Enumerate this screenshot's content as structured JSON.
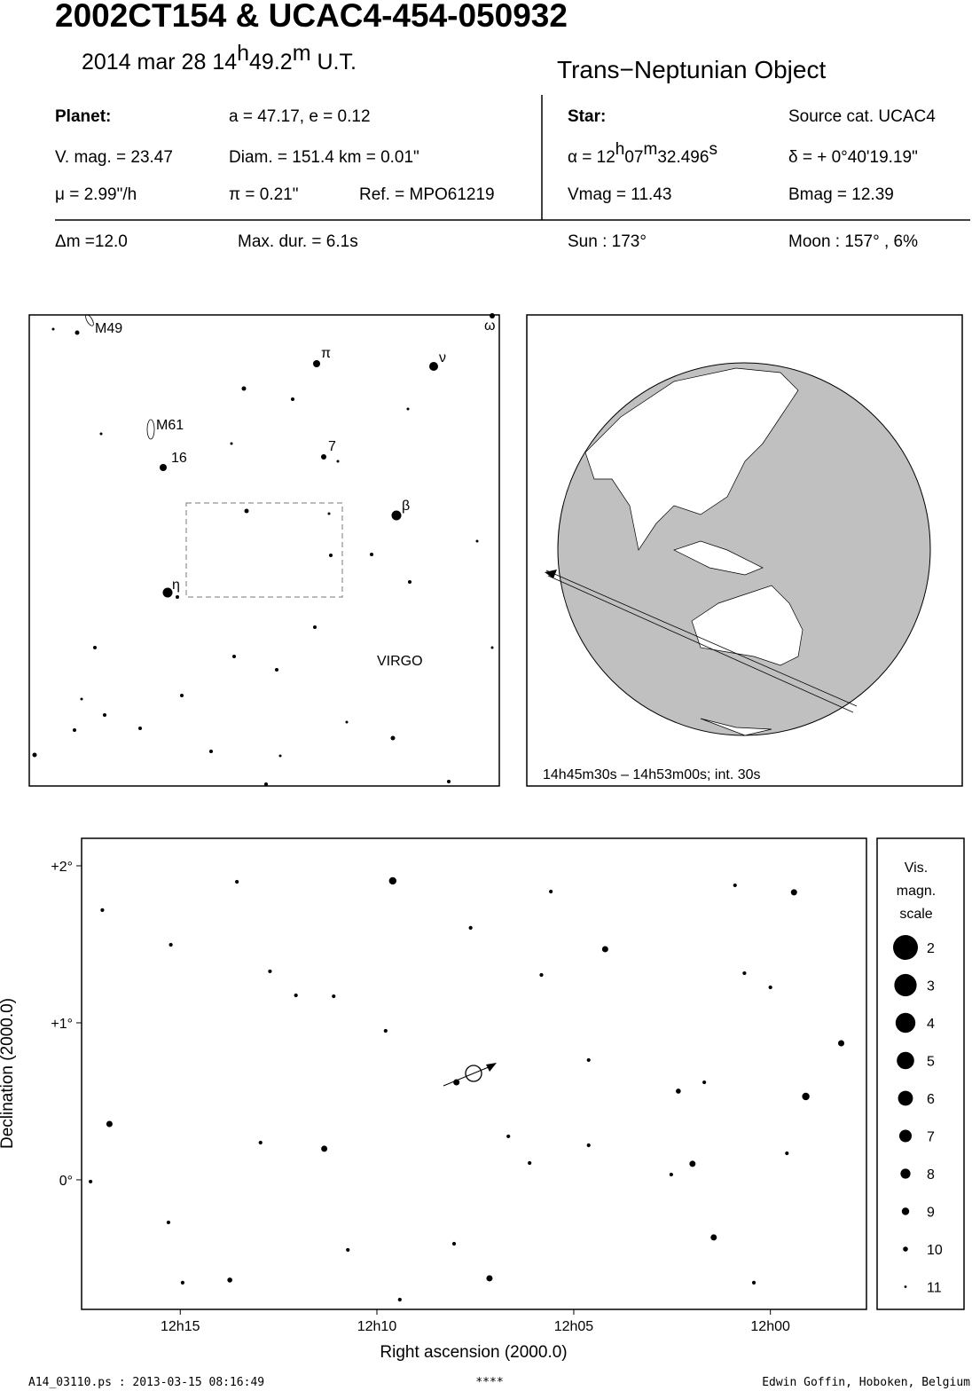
{
  "header": {
    "title": "2002CT154  &  UCAC4-454-050932",
    "date": {
      "day": "2014 mar 28  14",
      "h": "h",
      "min": "49.2",
      "m": "m",
      "ut": " U.T."
    },
    "object_type": "Trans−Neptunian Object"
  },
  "planet": {
    "label": "Planet:",
    "orbit": "a = 47.17, e = 0.12",
    "vmag": "V. mag. = 23.47",
    "diam": "Diam. = 151.4 km = 0.01\"",
    "mu": "μ =  2.99\"/h",
    "parallax": "π =  0.21\"",
    "ref": "Ref. = MPO61219"
  },
  "star": {
    "label": "Star:",
    "source": "Source cat.  UCAC4",
    "alpha": {
      "a": "α = 12",
      "h": "h",
      "min": "07",
      "m": "m",
      "sec": "32.496",
      "s": "s"
    },
    "delta": "δ = + 0°40'19.19\"",
    "vmag": "Vmag = 11.43",
    "bmag": "Bmag = 12.39"
  },
  "event": {
    "dm": "Δm =12.0",
    "dur": "Max. dur. = 6.1s",
    "sun": "Sun : 173°",
    "moon": "Moon : 157° ,  6%"
  },
  "finder": {
    "labels": [
      "M49",
      "M61",
      "16",
      "7",
      "π",
      "ν",
      "ω",
      "β",
      "η",
      "VIRGO"
    ]
  },
  "globe": {
    "caption": "14h45m30s – 14h53m00s; int. 30s"
  },
  "chart_data": {
    "type": "scatter",
    "x_label": "Right ascension (2000.0)",
    "y_label": "Declination (2000.0)",
    "xlim": [
      12.2918,
      11.9593
    ],
    "ylim": [
      -0.825,
      2.175
    ],
    "xticks": [
      {
        "value": 12.25,
        "label": "12h15"
      },
      {
        "value": 12.1667,
        "label": "12h10"
      },
      {
        "value": 12.0833,
        "label": "12h05"
      },
      {
        "value": 12,
        "label": "12h00"
      }
    ],
    "yticks": [
      {
        "value": 2,
        "label": "+2°"
      },
      {
        "value": 1,
        "label": "+1°"
      },
      {
        "value": 0,
        "label": "0°"
      }
    ],
    "x": [
      12.16,
      11.99,
      12.07,
      12.28,
      12.189,
      11.985,
      11.97,
      12.133,
      12.119,
      12.024,
      12.033,
      12.229,
      12.039,
      12.283,
      12.254,
      12.097,
      12.216,
      12.201,
      12.185,
      12.249,
      12.255,
      12.015,
      12.011,
      12.0,
      12.007,
      11.993,
      12.288,
      12.077,
      12.111,
      12.163,
      12.028,
      12.042,
      12.077,
      12.102,
      12.127,
      12.093,
      12.157,
      12.179,
      12.134,
      12.212,
      12.226
    ],
    "y": [
      1.904,
      1.831,
      1.469,
      0.356,
      0.198,
      0.531,
      0.87,
      0.621,
      -0.627,
      -0.367,
      0.102,
      -0.638,
      0.565,
      1.718,
      1.497,
      1.305,
      0.237,
      1.175,
      1.169,
      -0.655,
      -0.271,
      1.876,
      1.316,
      1.226,
      -0.655,
      0.169,
      -0.011,
      0.763,
      0.277,
      0.949,
      0.621,
      0.034,
      0.22,
      0.107,
      1.605,
      1.836,
      -0.763,
      -0.446,
      -0.407,
      1.328,
      1.898
    ],
    "mag": [
      6,
      7,
      7,
      7,
      7,
      6,
      7,
      7,
      7,
      7,
      7,
      8,
      8,
      9,
      9,
      9,
      9,
      9,
      9,
      9,
      9,
      9,
      9,
      9,
      9,
      9,
      9,
      9,
      9,
      9,
      9,
      9,
      9,
      9,
      9,
      9,
      9,
      9,
      9,
      9,
      9
    ],
    "size_legend": {
      "title": [
        "Vis.",
        "magn.",
        "scale"
      ],
      "values": [
        2,
        3,
        4,
        5,
        6,
        7,
        8,
        9,
        10,
        11
      ]
    }
  },
  "footer": {
    "file": "A14_03110.ps : 2013-03-15 08:16:49",
    "stars": "****",
    "author": "Edwin Goffin, Hoboken, Belgium"
  }
}
